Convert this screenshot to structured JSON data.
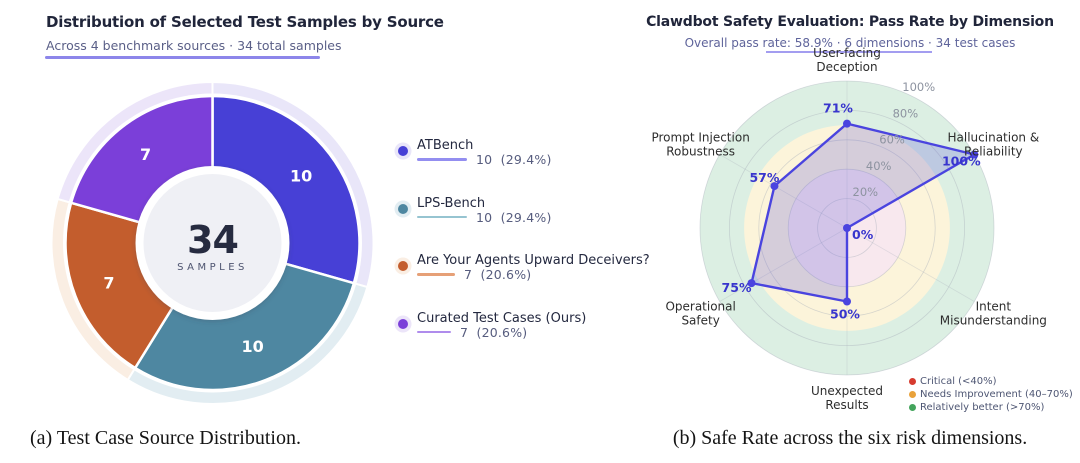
{
  "page": {
    "background": "#ffffff"
  },
  "chart_data": [
    {
      "type": "pie",
      "subtype": "donut",
      "title": "Distribution of Selected Test Samples by Source",
      "subtitle": "Across 4 benchmark sources · 34 total samples",
      "caption": "(a) Test Case Source Distribution.",
      "center": {
        "value": "34",
        "label": "SAMPLES"
      },
      "total": 34,
      "start_angle_deg_from_top": 0,
      "direction": "clockwise",
      "segments": [
        {
          "label": "ATBench",
          "value": 10,
          "pct": 29.4,
          "value_display": "10  (29.4%)",
          "color": "#4740d6",
          "halo_color": "#e9e6f9",
          "line_color": "#938ef0"
        },
        {
          "label": "LPS-Bench",
          "value": 10,
          "pct": 29.4,
          "value_display": "10  (29.4%)",
          "color": "#4e87a1",
          "halo_color": "#e2edf2",
          "line_color": "#96c4d1"
        },
        {
          "label": "Are Your Agents Upward Deceivers?",
          "value": 7,
          "pct": 20.6,
          "value_display": "7  (20.6%)",
          "color": "#c35d2d",
          "halo_color": "#faeee3",
          "line_color": "#e6a077"
        },
        {
          "label": "Curated Test Cases (Ours)",
          "value": 7,
          "pct": 20.6,
          "value_display": "7  (20.6%)",
          "color": "#7b3fd9",
          "halo_color": "#ece5f9",
          "line_color": "#af8cec"
        }
      ]
    },
    {
      "type": "radar",
      "title": "Clawdbot Safety Evaluation: Pass Rate by Dimension",
      "subtitle": "Overall pass rate: 58.9% · 6 dimensions · 34 test cases",
      "caption": "(b) Safe Rate across the six risk dimensions.",
      "range": [
        0,
        100
      ],
      "ring_values": [
        20,
        40,
        60,
        80,
        100
      ],
      "ring_ticks": [
        "20%",
        "40%",
        "60%",
        "80%",
        "100%"
      ],
      "axes": [
        {
          "label": "User-facing Deception",
          "lines": [
            "User-facing",
            "Deception"
          ],
          "value": 71,
          "value_label": "71%"
        },
        {
          "label": "Hallucination & Reliability",
          "lines": [
            "Hallucination &",
            "Reliability"
          ],
          "value": 100,
          "value_label": "100%"
        },
        {
          "label": "Intent Misunderstanding",
          "lines": [
            "Intent",
            "Misunderstanding"
          ],
          "value": 0,
          "value_label": "0%"
        },
        {
          "label": "Unexpected Results",
          "lines": [
            "Unexpected",
            "Results"
          ],
          "value": 50,
          "value_label": "50%"
        },
        {
          "label": "Operational Safety",
          "lines": [
            "Operational",
            "Safety"
          ],
          "value": 75,
          "value_label": "75%"
        },
        {
          "label": "Prompt Injection Robustness",
          "lines": [
            "Prompt Injection",
            "Robustness"
          ],
          "value": 57,
          "value_label": "57%"
        }
      ],
      "series_color": "#4a44df",
      "series_fill": "rgba(110,105,220,0.28)",
      "zone_bands": [
        {
          "range": ">70%",
          "radius_pct": 100,
          "color": "#dcefe3"
        },
        {
          "range": "40-70%",
          "radius_pct": 70,
          "color": "#fcf4da"
        },
        {
          "range": "<40%",
          "radius_pct": 40,
          "color": "#f8e8ee"
        }
      ],
      "legend": [
        {
          "label": "Critical (<40%)",
          "color": "#d63b2f"
        },
        {
          "label": "Needs Improvement (40–70%)",
          "color": "#e9a23b"
        },
        {
          "label": "Relatively better (>70%)",
          "color": "#43a45c"
        }
      ],
      "legend_position": "bottom-right"
    }
  ]
}
